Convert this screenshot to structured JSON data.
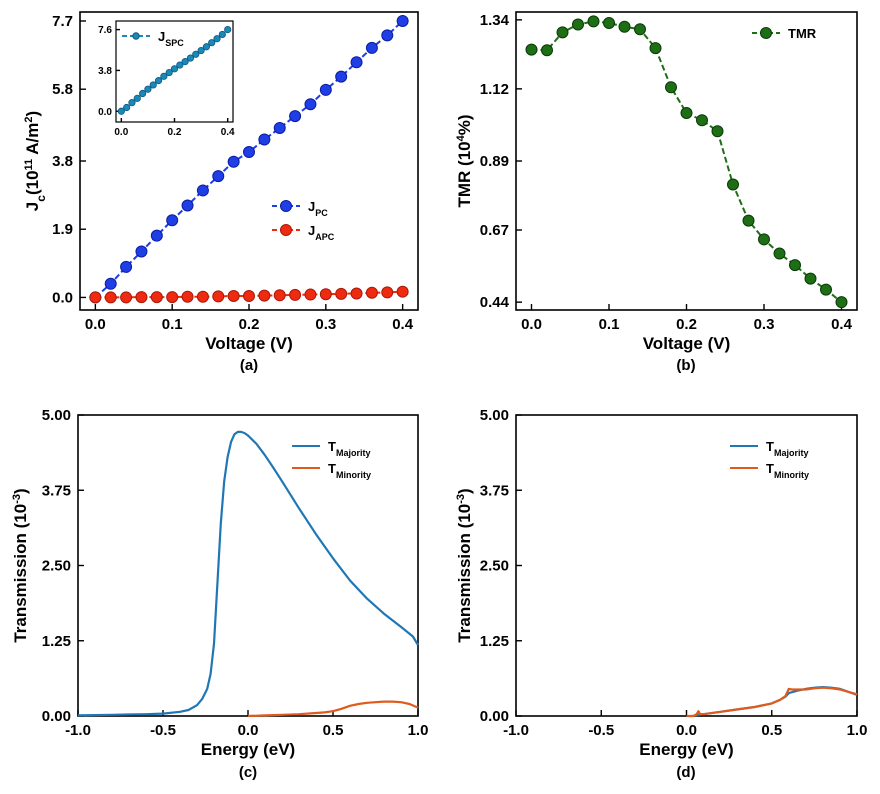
{
  "chart_data": [
    {
      "id": "a",
      "type": "line",
      "caption": "(a)",
      "xlabel": "Voltage (V)",
      "ylabel": {
        "main": "J",
        "sub": "c",
        "mid": "(10",
        "sup": "11",
        "unit": " A/m",
        "unitsup": "2",
        "close": ")"
      },
      "xlim": [
        -0.02,
        0.42
      ],
      "ylim": [
        -0.35,
        7.95
      ],
      "xticks": [
        0.0,
        0.1,
        0.2,
        0.3,
        0.4
      ],
      "xtick_labels": [
        "0.0",
        "0.1",
        "0.2",
        "0.3",
        "0.4"
      ],
      "yticks": [
        0.0,
        1.9,
        3.8,
        5.8,
        7.7
      ],
      "ytick_labels": [
        "0.0",
        "1.9",
        "3.8",
        "5.8",
        "7.7"
      ],
      "x": [
        0.0,
        0.02,
        0.04,
        0.06,
        0.08,
        0.1,
        0.12,
        0.14,
        0.16,
        0.18,
        0.2,
        0.22,
        0.24,
        0.26,
        0.28,
        0.3,
        0.32,
        0.34,
        0.36,
        0.38,
        0.4
      ],
      "series": [
        {
          "name": "J_PC",
          "label_main": "J",
          "label_sub": "PC",
          "color": "#1f3ee6",
          "edge": "#0a1ea0",
          "values": [
            0.0,
            0.38,
            0.85,
            1.28,
            1.72,
            2.15,
            2.56,
            2.98,
            3.38,
            3.78,
            4.05,
            4.4,
            4.72,
            5.05,
            5.38,
            5.78,
            6.15,
            6.55,
            6.95,
            7.3,
            7.7
          ]
        },
        {
          "name": "J_APC",
          "label_main": "J",
          "label_sub": "APC",
          "color": "#ee2a10",
          "edge": "#a81a08",
          "values": [
            0.0,
            0.0,
            0.0,
            0.01,
            0.01,
            0.01,
            0.02,
            0.02,
            0.03,
            0.04,
            0.04,
            0.05,
            0.06,
            0.07,
            0.08,
            0.09,
            0.1,
            0.11,
            0.13,
            0.14,
            0.16
          ]
        }
      ],
      "legend_position": "center-right",
      "inset": {
        "xlim": [
          -0.02,
          0.42
        ],
        "ylim": [
          -1.0,
          8.4
        ],
        "xticks": [
          0.0,
          0.2,
          0.4
        ],
        "xtick_labels": [
          "0.0",
          "0.2",
          "0.4"
        ],
        "yticks": [
          0.0,
          3.8,
          7.6
        ],
        "ytick_labels": [
          "0.0",
          "3.8",
          "7.6"
        ],
        "x": [
          0.0,
          0.02,
          0.04,
          0.06,
          0.08,
          0.1,
          0.12,
          0.14,
          0.16,
          0.18,
          0.2,
          0.22,
          0.24,
          0.26,
          0.28,
          0.3,
          0.32,
          0.34,
          0.36,
          0.38,
          0.4
        ],
        "series": [
          {
            "name": "J_SPC",
            "label_main": "J",
            "label_sub": "SPC",
            "color": "#1a88b8",
            "edge": "#0e5a80",
            "values": [
              0.0,
              0.35,
              0.8,
              1.2,
              1.65,
              2.05,
              2.45,
              2.85,
              3.25,
              3.6,
              3.95,
              4.3,
              4.62,
              4.95,
              5.3,
              5.65,
              6.0,
              6.38,
              6.75,
              7.15,
              7.6
            ]
          }
        ],
        "legend_position": "top-left"
      }
    },
    {
      "id": "b",
      "type": "line",
      "caption": "(b)",
      "xlabel": "Voltage (V)",
      "ylabel": {
        "main": "TMR (10",
        "sup": "4",
        "close": "%)"
      },
      "xlim": [
        -0.02,
        0.42
      ],
      "ylim": [
        0.415,
        1.365
      ],
      "xticks": [
        0.0,
        0.1,
        0.2,
        0.3,
        0.4
      ],
      "xtick_labels": [
        "0.0",
        "0.1",
        "0.2",
        "0.3",
        "0.4"
      ],
      "yticks": [
        0.44,
        0.67,
        0.89,
        1.12,
        1.34
      ],
      "ytick_labels": [
        "0.44",
        "0.67",
        "0.89",
        "1.12",
        "1.34"
      ],
      "x": [
        0.0,
        0.02,
        0.04,
        0.06,
        0.08,
        0.1,
        0.12,
        0.14,
        0.16,
        0.18,
        0.2,
        0.22,
        0.24,
        0.26,
        0.28,
        0.3,
        0.32,
        0.34,
        0.36,
        0.38,
        0.4
      ],
      "series": [
        {
          "name": "TMR",
          "label_main": "TMR",
          "color": "#1e6e16",
          "edge": "#0b3a08",
          "values": [
            1.245,
            1.243,
            1.3,
            1.325,
            1.335,
            1.33,
            1.318,
            1.31,
            1.25,
            1.125,
            1.043,
            1.02,
            0.985,
            0.815,
            0.7,
            0.64,
            0.595,
            0.558,
            0.515,
            0.48,
            0.44
          ]
        }
      ],
      "legend_position": "top-right"
    },
    {
      "id": "c",
      "type": "line",
      "caption": "(c)",
      "xlabel": "Energy (eV)",
      "ylabel": {
        "main": "Transmission (10",
        "sup": "-3",
        "close": ")"
      },
      "xlim": [
        -1.0,
        1.0
      ],
      "ylim": [
        0.0,
        5.0
      ],
      "xticks": [
        -1.0,
        -0.5,
        0.0,
        0.5,
        1.0
      ],
      "xtick_labels": [
        "-1.0",
        "-0.5",
        "0.0",
        "0.5",
        "1.0"
      ],
      "yticks": [
        0.0,
        1.25,
        2.5,
        3.75,
        5.0
      ],
      "ytick_labels": [
        "0.00",
        "1.25",
        "2.50",
        "3.75",
        "5.00"
      ],
      "series": [
        {
          "name": "T_Majority",
          "label_main": "T",
          "label_sub": "Majority",
          "color": "#1f77b4",
          "x": [
            -1.0,
            -0.8,
            -0.6,
            -0.5,
            -0.4,
            -0.35,
            -0.3,
            -0.27,
            -0.24,
            -0.22,
            -0.2,
            -0.18,
            -0.16,
            -0.14,
            -0.12,
            -0.1,
            -0.08,
            -0.06,
            -0.04,
            -0.02,
            0.0,
            0.05,
            0.1,
            0.15,
            0.2,
            0.3,
            0.4,
            0.5,
            0.6,
            0.7,
            0.8,
            0.9,
            0.97,
            1.0
          ],
          "y": [
            0.01,
            0.02,
            0.03,
            0.04,
            0.07,
            0.1,
            0.18,
            0.28,
            0.45,
            0.7,
            1.2,
            2.2,
            3.2,
            3.9,
            4.3,
            4.55,
            4.68,
            4.72,
            4.72,
            4.7,
            4.66,
            4.52,
            4.33,
            4.12,
            3.9,
            3.45,
            3.02,
            2.62,
            2.25,
            1.95,
            1.7,
            1.48,
            1.32,
            1.18
          ]
        },
        {
          "name": "T_Minority",
          "label_main": "T",
          "label_sub": "Minority",
          "color": "#e05a1c",
          "x": [
            0.0,
            0.1,
            0.2,
            0.3,
            0.4,
            0.45,
            0.5,
            0.55,
            0.6,
            0.65,
            0.7,
            0.75,
            0.8,
            0.85,
            0.9,
            0.95,
            1.0
          ],
          "y": [
            0.0,
            0.01,
            0.02,
            0.03,
            0.05,
            0.06,
            0.08,
            0.12,
            0.17,
            0.2,
            0.22,
            0.23,
            0.24,
            0.24,
            0.23,
            0.2,
            0.14
          ]
        }
      ],
      "legend_position": "top-right"
    },
    {
      "id": "d",
      "type": "line",
      "caption": "(d)",
      "xlabel": "Energy (eV)",
      "ylabel": {
        "main": "Transmission (10",
        "sup": "-3",
        "close": ")"
      },
      "xlim": [
        -1.0,
        1.0
      ],
      "ylim": [
        0.0,
        5.0
      ],
      "xticks": [
        -1.0,
        -0.5,
        0.0,
        0.5,
        1.0
      ],
      "xtick_labels": [
        "-1.0",
        "-0.5",
        "0.0",
        "0.5",
        "1.0"
      ],
      "yticks": [
        0.0,
        1.25,
        2.5,
        3.75,
        5.0
      ],
      "ytick_labels": [
        "0.00",
        "1.25",
        "2.50",
        "3.75",
        "5.00"
      ],
      "series": [
        {
          "name": "T_Majority",
          "label_main": "T",
          "label_sub": "Majority",
          "color": "#1f77b4",
          "x": [
            0.05,
            0.1,
            0.2,
            0.3,
            0.4,
            0.5,
            0.55,
            0.58,
            0.6,
            0.65,
            0.7,
            0.75,
            0.8,
            0.85,
            0.9,
            0.95,
            1.0
          ],
          "y": [
            0.01,
            0.03,
            0.07,
            0.11,
            0.15,
            0.21,
            0.27,
            0.32,
            0.38,
            0.42,
            0.45,
            0.47,
            0.48,
            0.47,
            0.45,
            0.4,
            0.35
          ]
        },
        {
          "name": "T_Minority",
          "label_main": "T",
          "label_sub": "Minority",
          "color": "#e05a1c",
          "x": [
            0.0,
            0.04,
            0.06,
            0.07,
            0.08,
            0.1,
            0.2,
            0.3,
            0.4,
            0.5,
            0.55,
            0.58,
            0.6,
            0.62,
            0.7,
            0.75,
            0.8,
            0.85,
            0.9,
            0.95,
            1.0
          ],
          "y": [
            0.0,
            0.0,
            0.03,
            0.08,
            0.03,
            0.03,
            0.07,
            0.11,
            0.15,
            0.21,
            0.27,
            0.33,
            0.45,
            0.44,
            0.44,
            0.46,
            0.47,
            0.46,
            0.44,
            0.4,
            0.36
          ]
        }
      ],
      "legend_position": "top-right"
    }
  ]
}
